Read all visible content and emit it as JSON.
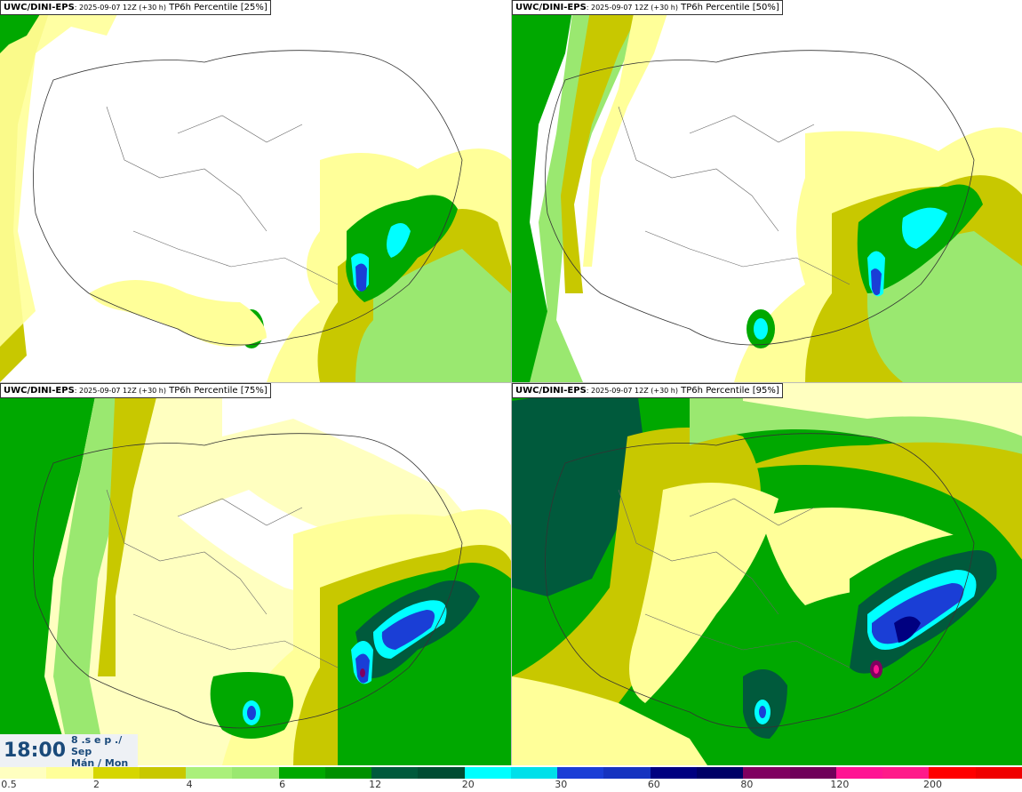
{
  "panels": [
    {
      "model": "UWC/DINI-EPS",
      "run": ": 2025-09-07 12Z (+30 h)",
      "field": "TP6h Percentile [25%]"
    },
    {
      "model": "UWC/DINI-EPS",
      "run": ": 2025-09-07 12Z (+30 h)",
      "field": "TP6h Percentile [50%]"
    },
    {
      "model": "UWC/DINI-EPS",
      "run": ": 2025-09-07 12Z (+30 h)",
      "field": "TP6h Percentile [75%]"
    },
    {
      "model": "UWC/DINI-EPS",
      "run": ": 2025-09-07 12Z (+30 h)",
      "field": "TP6h Percentile [95%]"
    }
  ],
  "valid_time": {
    "time": "18:00",
    "date_line1": "8 .s e p ./",
    "date_line2": "Sep",
    "date_line3": "Mán / Mon"
  },
  "colorbar": {
    "colors": [
      "#ffffc0",
      "#ffff99",
      "#d6d600",
      "#c8c800",
      "#aaf07a",
      "#9ae870",
      "#00a800",
      "#009000",
      "#005a3c",
      "#004d33",
      "#00ffff",
      "#00e0ea",
      "#1a3ed6",
      "#1533c0",
      "#000080",
      "#000066",
      "#800060",
      "#70005a",
      "#ff1493",
      "#ff1a8a",
      "#ff0000",
      "#f00000"
    ],
    "ticks": [
      "0.5",
      "2",
      "4",
      "6",
      "12",
      "20",
      "30",
      "60",
      "80",
      "120",
      "200"
    ]
  }
}
